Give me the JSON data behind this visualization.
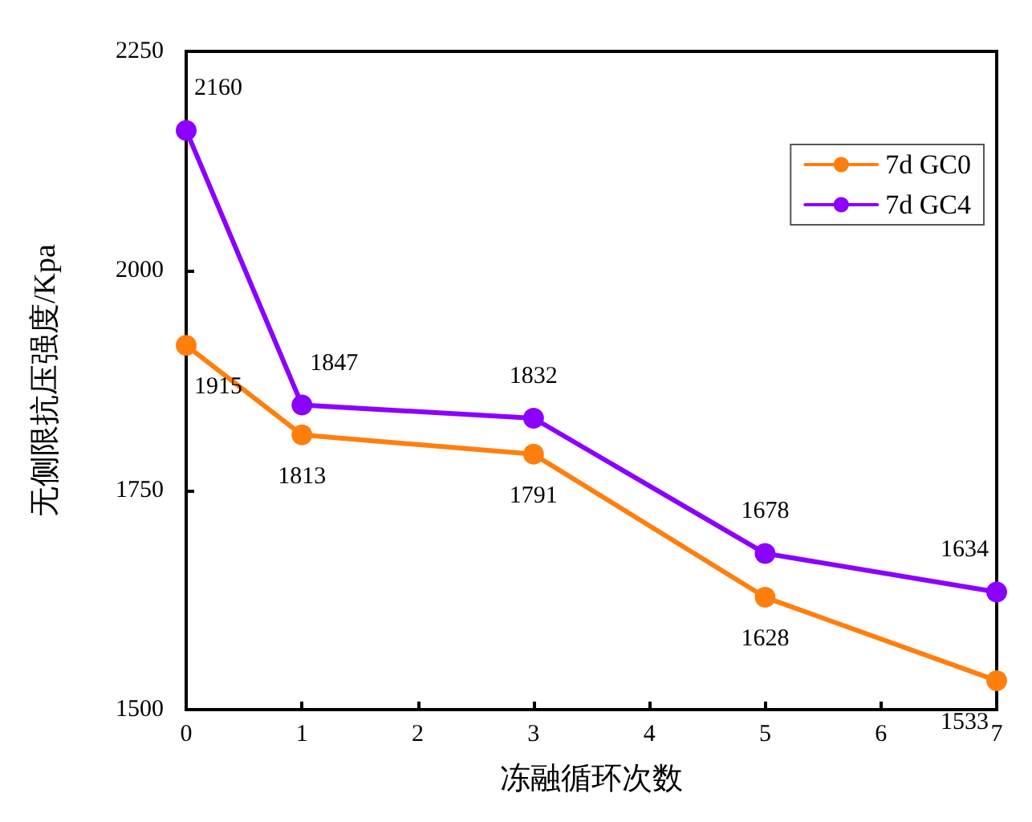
{
  "chart_data": {
    "type": "line",
    "xlabel": "冻融循环次数",
    "ylabel": "无侧限抗压强度/Kpa",
    "x": [
      0,
      1,
      3,
      5,
      7
    ],
    "series": [
      {
        "name": "7d GC0",
        "color": "#ff7f0e",
        "values": [
          1915,
          1813,
          1791,
          1628,
          1533
        ]
      },
      {
        "name": "7d GC4",
        "color": "#8b00ff",
        "values": [
          2160,
          1847,
          1832,
          1678,
          1634
        ]
      }
    ],
    "xlim": [
      0,
      7
    ],
    "xticks": [
      0,
      1,
      2,
      3,
      4,
      5,
      6,
      7
    ],
    "ylim": [
      1500,
      2250
    ],
    "yticks": [
      1500,
      1750,
      2000,
      2250
    ],
    "grid": false,
    "legend": "top right",
    "marker": "circle",
    "line_style": "solid",
    "data_labels": true
  }
}
